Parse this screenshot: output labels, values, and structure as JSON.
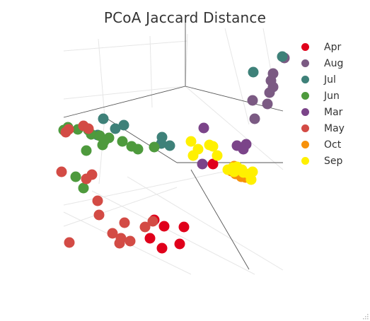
{
  "chart_data": {
    "type": "scatter",
    "title": "PCoA Jaccard Distance",
    "legend_position": "right",
    "grid": true,
    "series": [
      {
        "name": "Apr",
        "color": "#e0001b",
        "points": [
          [
            218,
            311
          ],
          [
            232,
            320
          ],
          [
            260,
            321
          ],
          [
            254,
            345
          ],
          [
            229,
            351
          ],
          [
            212,
            337
          ],
          [
            301,
            232
          ]
        ]
      },
      {
        "name": "Aug",
        "color": "#7b5a83",
        "points": [
          [
            402,
            82
          ],
          [
            386,
            104
          ],
          [
            381,
            131
          ],
          [
            378,
            147
          ],
          [
            357,
            142
          ],
          [
            360,
            168
          ],
          [
            386,
            123
          ],
          [
            383,
            114
          ]
        ]
      },
      {
        "name": "Jul",
        "color": "#3e8179",
        "points": [
          [
            358,
            102
          ],
          [
            399,
            80
          ],
          [
            146,
            168
          ],
          [
            163,
            182
          ],
          [
            175,
            177
          ],
          [
            138,
            191
          ],
          [
            229,
            194
          ],
          [
            240,
            206
          ],
          [
            228,
            203
          ]
        ]
      },
      {
        "name": "Jun",
        "color": "#4e9a3d",
        "points": [
          [
            96,
            180
          ],
          [
            90,
            184
          ],
          [
            110,
            183
          ],
          [
            129,
            190
          ],
          [
            141,
            192
          ],
          [
            125,
            184
          ],
          [
            154,
            195
          ],
          [
            147,
            200
          ],
          [
            145,
            205
          ],
          [
            173,
            200
          ],
          [
            186,
            207
          ],
          [
            195,
            211
          ],
          [
            218,
            208
          ],
          [
            122,
            213
          ],
          [
            107,
            250
          ],
          [
            118,
            266
          ]
        ]
      },
      {
        "name": "Mar",
        "color": "#7b4489",
        "points": [
          [
            288,
            181
          ],
          [
            335,
            206
          ],
          [
            348,
            204
          ],
          [
            344,
            211
          ],
          [
            286,
            232
          ]
        ]
      },
      {
        "name": "May",
        "color": "#d34b45",
        "points": [
          [
            93,
            187
          ],
          [
            97,
            183
          ],
          [
            118,
            178
          ],
          [
            125,
            182
          ],
          [
            87,
            243
          ],
          [
            130,
            247
          ],
          [
            122,
            253
          ],
          [
            138,
            284
          ],
          [
            140,
            304
          ],
          [
            176,
            315
          ],
          [
            159,
            330
          ],
          [
            171,
            337
          ],
          [
            184,
            341
          ],
          [
            169,
            344
          ],
          [
            205,
            321
          ],
          [
            216,
            313
          ],
          [
            98,
            343
          ]
        ]
      },
      {
        "name": "Oct",
        "color": "#f7910a",
        "points": [
          [
            331,
            235
          ],
          [
            327,
            242
          ],
          [
            333,
            246
          ],
          [
            347,
            251
          ],
          [
            341,
            250
          ]
        ]
      },
      {
        "name": "Sep",
        "color": "#fff000",
        "points": [
          [
            270,
            200
          ],
          [
            280,
            211
          ],
          [
            296,
            205
          ],
          [
            301,
            207
          ],
          [
            307,
            220
          ],
          [
            273,
            220
          ],
          [
            322,
            240
          ],
          [
            335,
            236
          ],
          [
            331,
            243
          ],
          [
            344,
            244
          ],
          [
            352,
            246
          ],
          [
            357,
            243
          ],
          [
            355,
            254
          ],
          [
            342,
            240
          ],
          [
            329,
            237
          ]
        ]
      }
    ]
  },
  "legend_icon": "circle-marker",
  "resize_icon": "resize-grip-icon"
}
